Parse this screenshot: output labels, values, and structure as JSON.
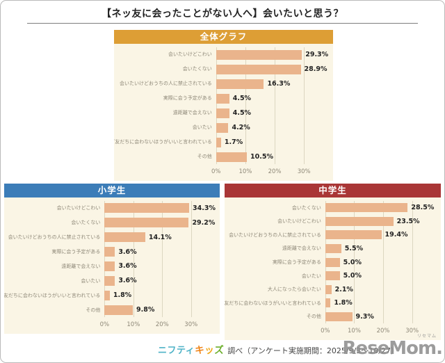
{
  "page": {
    "title": "【ネッ友に会ったことがない人へ】会いたいと思う？",
    "footer": {
      "brand_nifty": "ニフティ",
      "brand_kids": [
        "キ",
        "ッ",
        "ズ"
      ],
      "survey_note": "調べ（アンケート実施期間：2025/9/3～10/27）",
      "watermark": "ReseMom.",
      "watermark_ruby": "リセマム"
    },
    "colors": {
      "panel_bg": "#FAF5E5",
      "bar": "#EAB48C",
      "gridline": "#DCD6C0",
      "label_text": "#8D8777",
      "value_text": "#222222",
      "brand_nifty_color": "#4FB3C7",
      "brand_kids_colors": [
        "#F08519",
        "#F0A819",
        "#6CAF2C"
      ],
      "watermark_color": "#8F8F8F"
    }
  },
  "chart_data": [
    {
      "type": "bar",
      "orientation": "horizontal",
      "title": "全体グラフ",
      "header_color": "#DD9E35",
      "categories": [
        "会いたいけどこわい",
        "会いたくない",
        "会いたいけどおうちの人に禁止されている",
        "実際に会う予定がある",
        "遠距離で会えない",
        "会いたい",
        "会いたいけど友だちに会わないほうがいいと言われている",
        "その他"
      ],
      "values": [
        29.3,
        28.9,
        16.3,
        4.5,
        4.5,
        4.2,
        1.7,
        10.5
      ],
      "value_suffix": "%",
      "x_tick_values": [
        0,
        10,
        20,
        30
      ],
      "x_tick_labels": [
        "0%",
        "10%",
        "20%",
        "30%"
      ],
      "xlim": [
        0,
        38.5
      ],
      "grid": true,
      "legend": false
    },
    {
      "type": "bar",
      "orientation": "horizontal",
      "title": "小学生",
      "header_color": "#3C7DB8",
      "categories": [
        "会いたいけどこわい",
        "会いたくない",
        "会いたいけどおうちの人に禁止されている",
        "実際に会う予定がある",
        "遠距離で会えない",
        "会いたい",
        "会いたいけど友だちに会わないほうがいいと言われている",
        "その他"
      ],
      "values": [
        34.3,
        29.2,
        14.1,
        3.6,
        3.6,
        3.6,
        1.8,
        9.8
      ],
      "value_suffix": "%",
      "x_tick_values": [
        0,
        10,
        20,
        30
      ],
      "x_tick_labels": [
        "0%",
        "10%",
        "20%",
        "30%"
      ],
      "xlim": [
        0,
        38.5
      ],
      "grid": true,
      "legend": false
    },
    {
      "type": "bar",
      "orientation": "horizontal",
      "title": "中学生",
      "header_color": "#A93636",
      "categories": [
        "会いたくない",
        "会いたいけどこわい",
        "会いたいけどおうちの人に禁止されている",
        "遠距離で会えない",
        "実際に会う予定がある",
        "会いたい",
        "大人になったら会いたい",
        "会いたいけど友だちに会わないほうがいいと言われている",
        "その他"
      ],
      "values": [
        28.5,
        23.5,
        19.4,
        5.5,
        5.0,
        5.0,
        2.1,
        1.8,
        9.3
      ],
      "value_suffix": "%",
      "x_tick_values": [
        0,
        10,
        20,
        30
      ],
      "x_tick_labels": [
        "0%",
        "10%",
        "20%",
        "30%"
      ],
      "xlim": [
        0,
        38.5
      ],
      "grid": true,
      "legend": false
    }
  ]
}
